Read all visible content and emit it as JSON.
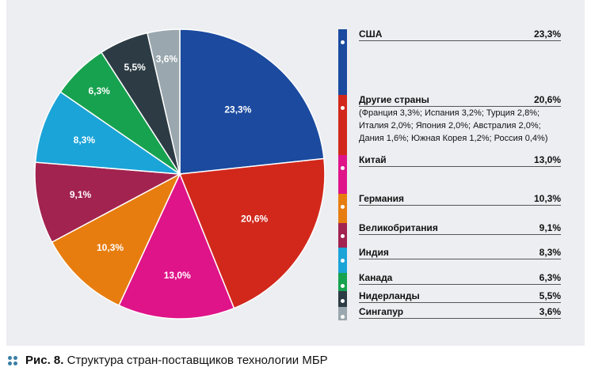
{
  "chart_data": {
    "type": "pie",
    "title": "Рис. 8. Структура стран-поставщиков технологии МБР",
    "slices": [
      {
        "label": "США",
        "value": 23.3,
        "text": "23,3%",
        "color": "#1b4a9f"
      },
      {
        "label": "Другие страны",
        "value": 20.6,
        "text": "20,6%",
        "color": "#d2281c",
        "note": [
          "(Франция 3,3%; Испания 3,2%; Турция 2,8%;",
          "Италия 2,0%; Япония 2,0%; Австралия 2,0%;",
          "Дания 1,6%; Южная Корея 1,2%; Россия 0,4%)"
        ]
      },
      {
        "label": "Китай",
        "value": 13.0,
        "text": "13,0%",
        "color": "#df1489"
      },
      {
        "label": "Германия",
        "value": 10.3,
        "text": "10,3%",
        "color": "#e77d0f"
      },
      {
        "label": "Великобритания",
        "value": 9.1,
        "text": "9,1%",
        "color": "#a2234f"
      },
      {
        "label": "Индия",
        "value": 8.3,
        "text": "8,3%",
        "color": "#1ba4d8"
      },
      {
        "label": "Канада",
        "value": 6.3,
        "text": "6,3%",
        "color": "#17a24f"
      },
      {
        "label": "Нидерланды",
        "value": 5.5,
        "text": "5,5%",
        "color": "#2d3c44"
      },
      {
        "label": "Сингапур",
        "value": 3.6,
        "text": "3,6%",
        "color": "#9aa7ae"
      }
    ],
    "legend_position": "right"
  },
  "caption": {
    "prefix": "Рис. 8.",
    "text": "Структура стран-поставщиков технологии МБР"
  }
}
